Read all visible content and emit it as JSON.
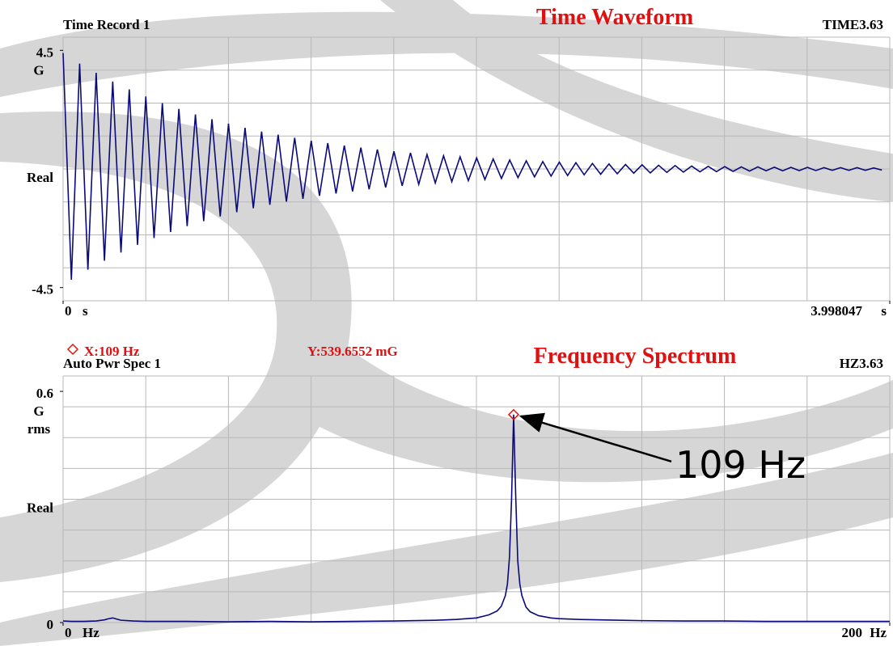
{
  "chart_data": [
    {
      "type": "line",
      "title": "Time Waveform",
      "subtitle": "Time Record 1",
      "id_label": "TIME3.63",
      "y_label": "Real",
      "y_unit": [
        "G"
      ],
      "x_unit": "s",
      "xlim": [
        0,
        3.998047
      ],
      "xticks": [
        0,
        3.998047
      ],
      "ylim": [
        -5,
        5
      ],
      "yticks": [
        -4.5,
        4.5
      ],
      "grid": true,
      "series": [
        {
          "color": "#0a0a78",
          "x": [
            0,
            0.04,
            0.08,
            0.12,
            0.16,
            0.2,
            0.24,
            0.28,
            0.32,
            0.36,
            0.4,
            0.44,
            0.48,
            0.52,
            0.56,
            0.6,
            0.64,
            0.68,
            0.72,
            0.76,
            0.8,
            0.84,
            0.88,
            0.92,
            0.96,
            1,
            1.04,
            1.08,
            1.12,
            1.16,
            1.2,
            1.24,
            1.28,
            1.32,
            1.36,
            1.4,
            1.44,
            1.48,
            1.52,
            1.56,
            1.6,
            1.64,
            1.68,
            1.72,
            1.76,
            1.8,
            1.84,
            1.88,
            1.92,
            1.96,
            2,
            2.04,
            2.08,
            2.12,
            2.16,
            2.2,
            2.24,
            2.28,
            2.32,
            2.36,
            2.4,
            2.44,
            2.48,
            2.52,
            2.56,
            2.6,
            2.64,
            2.68,
            2.72,
            2.76,
            2.8,
            2.84,
            2.88,
            2.92,
            2.96,
            3,
            3.04,
            3.08,
            3.12,
            3.16,
            3.2,
            3.24,
            3.28,
            3.32,
            3.36,
            3.4,
            3.44,
            3.48,
            3.52,
            3.56,
            3.6,
            3.64,
            3.68,
            3.72,
            3.76,
            3.8,
            3.84,
            3.88,
            3.92,
            3.96
          ],
          "values": [
            4.4,
            -4.2,
            4.0,
            -3.82,
            3.65,
            -3.48,
            3.32,
            -3.17,
            3.02,
            -2.88,
            2.75,
            -2.62,
            2.5,
            -2.39,
            2.28,
            -2.17,
            2.07,
            -1.98,
            1.89,
            -1.8,
            1.72,
            -1.64,
            1.56,
            -1.49,
            1.42,
            -1.36,
            1.3,
            -1.24,
            1.18,
            -1.13,
            1.07,
            -1.02,
            0.98,
            -0.93,
            0.89,
            -0.85,
            0.81,
            -0.77,
            0.74,
            -0.7,
            0.67,
            -0.64,
            0.61,
            -0.58,
            0.55,
            -0.53,
            0.5,
            -0.48,
            0.46,
            -0.44,
            0.42,
            -0.4,
            0.38,
            -0.36,
            0.34,
            -0.33,
            0.31,
            -0.3,
            0.28,
            -0.27,
            0.26,
            -0.25,
            0.24,
            -0.22,
            0.21,
            -0.2,
            0.19,
            -0.18,
            0.17,
            -0.16,
            0.16,
            -0.15,
            0.14,
            -0.13,
            0.13,
            -0.12,
            0.11,
            -0.11,
            0.1,
            -0.1,
            0.09,
            -0.09,
            0.08,
            -0.08,
            0.08,
            -0.07,
            0.07,
            -0.07,
            0.06,
            -0.06,
            0.06,
            -0.06,
            0.05,
            -0.05,
            0.05,
            -0.05,
            0.05,
            -0.05,
            0.04,
            -0.04
          ]
        }
      ]
    },
    {
      "type": "line",
      "title": "Frequency Spectrum",
      "subtitle": "Auto Pwr Spec 1",
      "id_label": "HZ3.63",
      "y_label": "Real",
      "y_unit": [
        "G",
        "rms"
      ],
      "x_unit": "Hz",
      "xlim": [
        0,
        200
      ],
      "xticks": [
        0,
        200
      ],
      "ylim": [
        0,
        0.64
      ],
      "yticks": [
        0,
        0.6
      ],
      "grid": true,
      "cursor": {
        "x_label": "X:109  Hz",
        "y_label": "Y:539.6552 mG",
        "x": 109,
        "y": 0.5396552,
        "color": "#e01010"
      },
      "annotation": {
        "text": "109 Hz",
        "x": 109,
        "y": 0.5396552
      },
      "series": [
        {
          "color": "#0a0a78",
          "x": [
            0,
            2,
            5,
            8,
            10,
            11,
            12,
            13,
            14,
            17,
            20,
            30,
            40,
            50,
            60,
            70,
            80,
            90,
            95,
            100,
            103,
            105,
            106,
            107,
            107.5,
            108,
            108.5,
            109,
            109.5,
            110,
            110.5,
            111,
            112,
            113,
            115,
            118,
            120,
            125,
            130,
            140,
            150,
            160,
            170,
            180,
            190,
            200
          ],
          "values": [
            0.004,
            0.003,
            0.003,
            0.004,
            0.007,
            0.01,
            0.012,
            0.009,
            0.006,
            0.004,
            0.003,
            0.003,
            0.002,
            0.003,
            0.002,
            0.003,
            0.004,
            0.006,
            0.008,
            0.012,
            0.02,
            0.03,
            0.042,
            0.07,
            0.1,
            0.17,
            0.32,
            0.5396552,
            0.33,
            0.16,
            0.1,
            0.07,
            0.04,
            0.028,
            0.018,
            0.012,
            0.01,
            0.008,
            0.007,
            0.005,
            0.004,
            0.004,
            0.003,
            0.003,
            0.003,
            0.003
          ]
        }
      ]
    }
  ]
}
